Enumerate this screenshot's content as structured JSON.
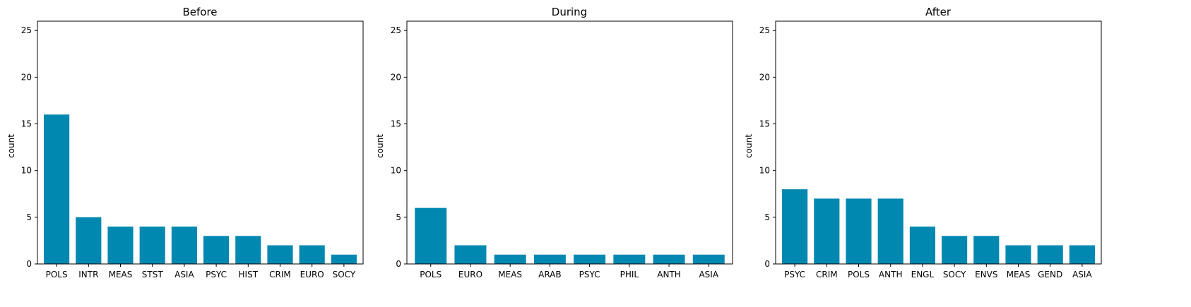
{
  "figure": {
    "bar_color": "#0088b0",
    "axis_color": "#000000",
    "background": "#ffffff"
  },
  "chart_data": [
    {
      "type": "bar",
      "title": "Before",
      "xlabel": "",
      "ylabel": "count",
      "ylim": [
        0,
        26
      ],
      "yticks": [
        0,
        5,
        10,
        15,
        20,
        25
      ],
      "grid": false,
      "categories": [
        "POLS",
        "INTR",
        "MEAS",
        "STST",
        "ASIA",
        "PSYC",
        "HIST",
        "CRIM",
        "EURO",
        "SOCY"
      ],
      "values": [
        16,
        5,
        4,
        4,
        4,
        3,
        3,
        2,
        2,
        1
      ]
    },
    {
      "type": "bar",
      "title": "During",
      "xlabel": "",
      "ylabel": "count",
      "ylim": [
        0,
        26
      ],
      "yticks": [
        0,
        5,
        10,
        15,
        20,
        25
      ],
      "grid": false,
      "categories": [
        "POLS",
        "EURO",
        "MEAS",
        "ARAB",
        "PSYC",
        "PHIL",
        "ANTH",
        "ASIA"
      ],
      "values": [
        6,
        2,
        1,
        1,
        1,
        1,
        1,
        1
      ]
    },
    {
      "type": "bar",
      "title": "After",
      "xlabel": "",
      "ylabel": "count",
      "ylim": [
        0,
        26
      ],
      "yticks": [
        0,
        5,
        10,
        15,
        20,
        25
      ],
      "grid": false,
      "categories": [
        "PSYC",
        "CRIM",
        "POLS",
        "ANTH",
        "ENGL",
        "SOCY",
        "ENVS",
        "MEAS",
        "GEND",
        "ASIA"
      ],
      "values": [
        8,
        7,
        7,
        7,
        4,
        3,
        3,
        2,
        2,
        2
      ]
    }
  ]
}
